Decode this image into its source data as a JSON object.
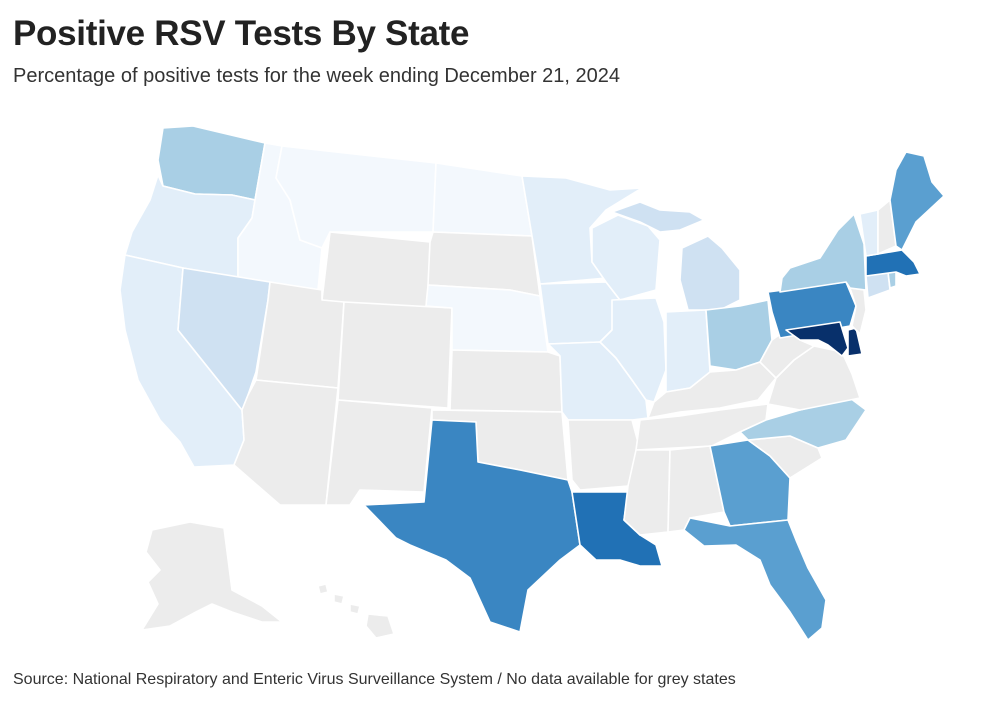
{
  "title": "Positive RSV Tests By State",
  "subtitle": "Percentage of positive tests for the week ending December 21, 2024",
  "source": "Source: National Respiratory and Enteric Virus Surveillance System / No data available for grey states",
  "colors": {
    "no_data": "#ececec",
    "shade_1": "#f3f8fd",
    "shade_2": "#e2eef9",
    "shade_3": "#cfe1f2",
    "shade_4": "#a9cfe5",
    "shade_5": "#7fb8da",
    "shade_6": "#5a9fd0",
    "shade_7": "#3a86c2",
    "shade_8": "#2171b5",
    "shade_9": "#08306b"
  },
  "states": [
    {
      "code": "WA",
      "shade": "shade_4"
    },
    {
      "code": "OR",
      "shade": "shade_2"
    },
    {
      "code": "CA",
      "shade": "shade_2"
    },
    {
      "code": "ID",
      "shade": "shade_1"
    },
    {
      "code": "NV",
      "shade": "shade_3"
    },
    {
      "code": "MT",
      "shade": "shade_1"
    },
    {
      "code": "WY",
      "shade": "no_data"
    },
    {
      "code": "UT",
      "shade": "no_data"
    },
    {
      "code": "AZ",
      "shade": "no_data"
    },
    {
      "code": "CO",
      "shade": "no_data"
    },
    {
      "code": "NM",
      "shade": "no_data"
    },
    {
      "code": "ND",
      "shade": "shade_1"
    },
    {
      "code": "SD",
      "shade": "no_data"
    },
    {
      "code": "NE",
      "shade": "shade_1"
    },
    {
      "code": "KS",
      "shade": "no_data"
    },
    {
      "code": "OK",
      "shade": "no_data"
    },
    {
      "code": "TX",
      "shade": "shade_7"
    },
    {
      "code": "MN",
      "shade": "shade_2"
    },
    {
      "code": "IA",
      "shade": "shade_2"
    },
    {
      "code": "MO",
      "shade": "shade_2"
    },
    {
      "code": "AR",
      "shade": "no_data"
    },
    {
      "code": "LA",
      "shade": "shade_8"
    },
    {
      "code": "WI",
      "shade": "shade_2"
    },
    {
      "code": "IL",
      "shade": "shade_2"
    },
    {
      "code": "MI",
      "shade": "shade_3"
    },
    {
      "code": "IN",
      "shade": "shade_2"
    },
    {
      "code": "OH",
      "shade": "shade_4"
    },
    {
      "code": "KY",
      "shade": "no_data"
    },
    {
      "code": "TN",
      "shade": "no_data"
    },
    {
      "code": "MS",
      "shade": "no_data"
    },
    {
      "code": "AL",
      "shade": "no_data"
    },
    {
      "code": "GA",
      "shade": "shade_6"
    },
    {
      "code": "FL",
      "shade": "shade_6"
    },
    {
      "code": "SC",
      "shade": "no_data"
    },
    {
      "code": "NC",
      "shade": "shade_4"
    },
    {
      "code": "VA",
      "shade": "no_data"
    },
    {
      "code": "WV",
      "shade": "no_data"
    },
    {
      "code": "MD",
      "shade": "shade_9"
    },
    {
      "code": "DE",
      "shade": "shade_9"
    },
    {
      "code": "PA",
      "shade": "shade_7"
    },
    {
      "code": "NJ",
      "shade": "no_data"
    },
    {
      "code": "NY",
      "shade": "shade_4"
    },
    {
      "code": "CT",
      "shade": "shade_3"
    },
    {
      "code": "RI",
      "shade": "shade_4"
    },
    {
      "code": "MA",
      "shade": "shade_8"
    },
    {
      "code": "VT",
      "shade": "shade_2"
    },
    {
      "code": "NH",
      "shade": "no_data"
    },
    {
      "code": "ME",
      "shade": "shade_6"
    },
    {
      "code": "AK",
      "shade": "no_data"
    },
    {
      "code": "HI",
      "shade": "no_data"
    }
  ]
}
